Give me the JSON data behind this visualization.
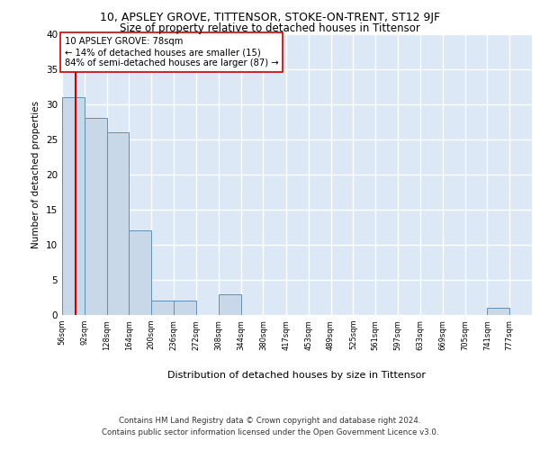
{
  "title1": "10, APSLEY GROVE, TITTENSOR, STOKE-ON-TRENT, ST12 9JF",
  "title2": "Size of property relative to detached houses in Tittensor",
  "xlabel": "Distribution of detached houses by size in Tittensor",
  "ylabel": "Number of detached properties",
  "bin_labels": [
    "56sqm",
    "92sqm",
    "128sqm",
    "164sqm",
    "200sqm",
    "236sqm",
    "272sqm",
    "308sqm",
    "344sqm",
    "380sqm",
    "417sqm",
    "453sqm",
    "489sqm",
    "525sqm",
    "561sqm",
    "597sqm",
    "633sqm",
    "669sqm",
    "705sqm",
    "741sqm",
    "777sqm"
  ],
  "bin_edges": [
    56,
    92,
    128,
    164,
    200,
    236,
    272,
    308,
    344,
    380,
    417,
    453,
    489,
    525,
    561,
    597,
    633,
    669,
    705,
    741,
    777,
    813
  ],
  "bar_values": [
    31,
    28,
    26,
    12,
    2,
    2,
    0,
    3,
    0,
    0,
    0,
    0,
    0,
    0,
    0,
    0,
    0,
    0,
    0,
    1,
    0
  ],
  "bar_color": "#c8d8e8",
  "bar_edge_color": "#6090b8",
  "property_size": 78,
  "property_line_color": "#cc0000",
  "annotation_line1": "10 APSLEY GROVE: 78sqm",
  "annotation_line2": "← 14% of detached houses are smaller (15)",
  "annotation_line3": "84% of semi-detached houses are larger (87) →",
  "annotation_box_edge_color": "#cc0000",
  "ylim": [
    0,
    40
  ],
  "yticks": [
    0,
    5,
    10,
    15,
    20,
    25,
    30,
    35,
    40
  ],
  "background_color": "#dce8f5",
  "grid_color": "#ffffff",
  "footer1": "Contains HM Land Registry data © Crown copyright and database right 2024.",
  "footer2": "Contains public sector information licensed under the Open Government Licence v3.0."
}
